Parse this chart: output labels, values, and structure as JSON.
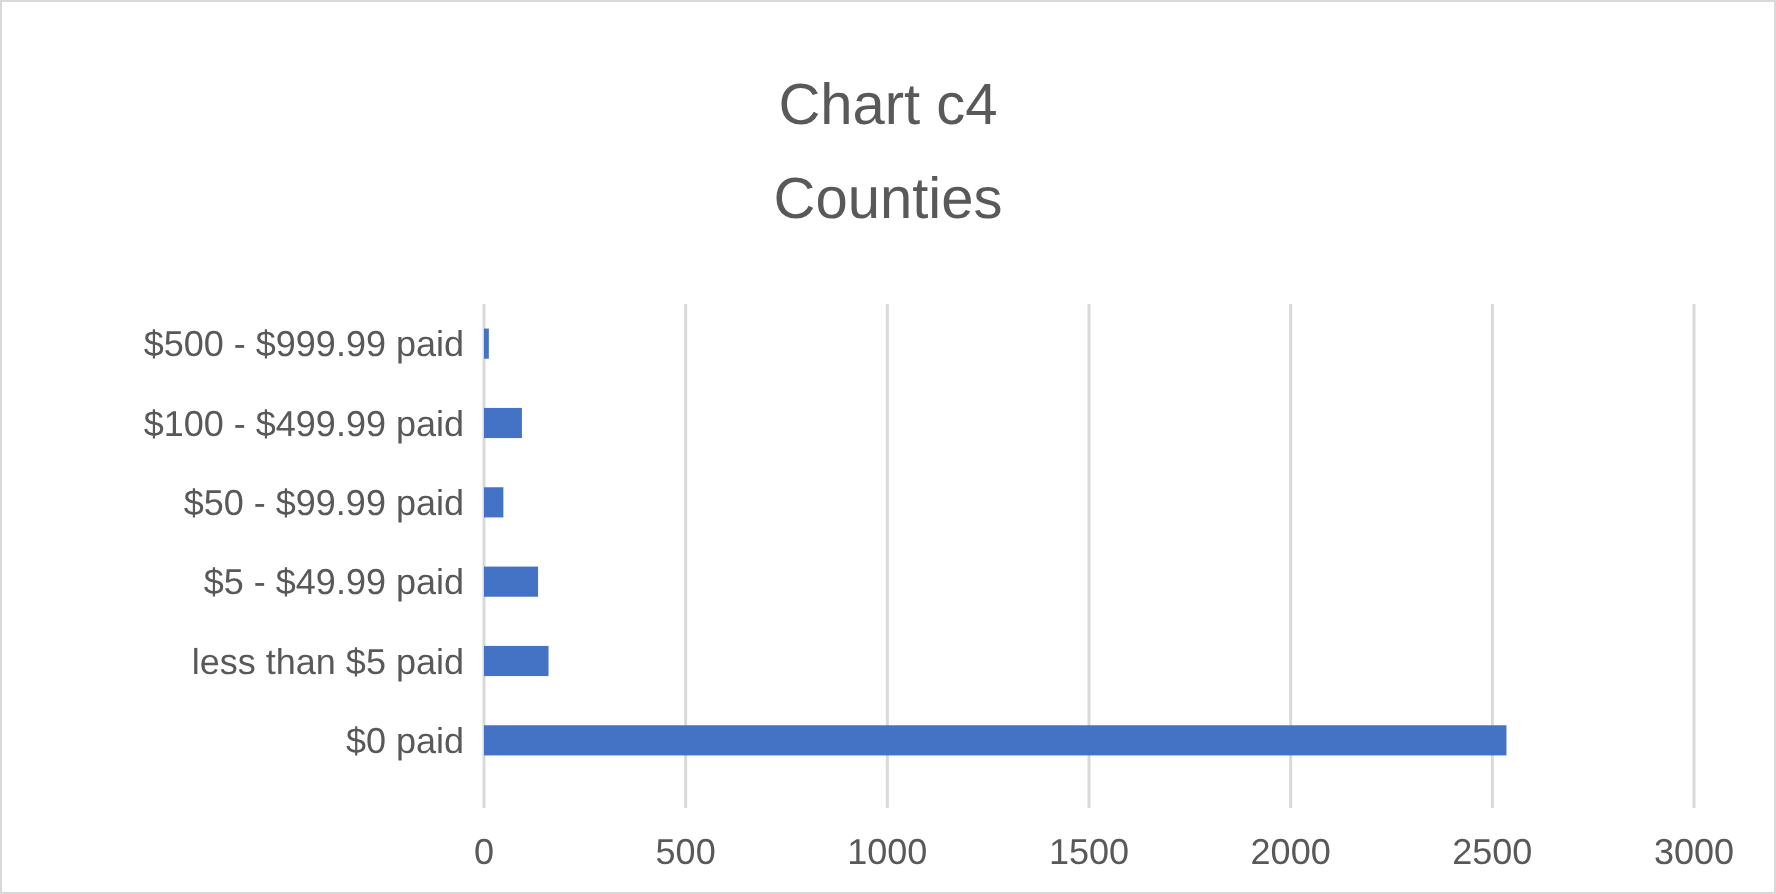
{
  "chart_data": {
    "type": "bar",
    "orientation": "horizontal",
    "title": "Chart c4",
    "subtitle": "Counties",
    "categories": [
      "$500 - $999.99 paid",
      "$100 - $499.99 paid",
      "$50 - $99.99 paid",
      "$5 - $49.99 paid",
      "less than $5 paid",
      "$0 paid"
    ],
    "values": [
      12,
      94,
      48,
      134,
      160,
      2535
    ],
    "color": "#4472c4",
    "xlim": [
      0,
      3000
    ],
    "xticks": [
      0,
      500,
      1000,
      1500,
      2000,
      2500,
      3000
    ],
    "grid": "x"
  }
}
